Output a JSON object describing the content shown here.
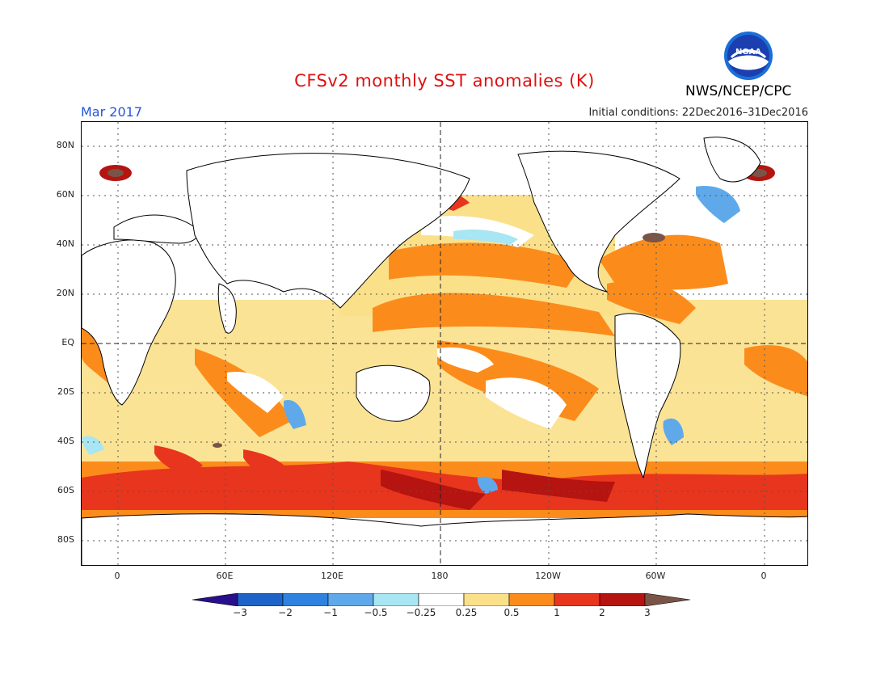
{
  "title": "CFSv2 monthly SST anomalies (K)",
  "agency": "NWS/NCEP/CPC",
  "logo_text": "NOAA",
  "valid_month": "Mar 2017",
  "initial_conditions": "Initial conditions: 22Dec2016–31Dec2016",
  "lat_labels": [
    "80N",
    "60N",
    "40N",
    "20N",
    "EQ",
    "20S",
    "40S",
    "60S",
    "80S"
  ],
  "lon_labels": [
    "0",
    "60E",
    "120E",
    "180",
    "120W",
    "60W",
    "0"
  ],
  "colorbar": {
    "labels": [
      "−3",
      "−2",
      "−1",
      "−0.5",
      "−0.25",
      "0.25",
      "0.5",
      "1",
      "2",
      "3"
    ],
    "colors": [
      "#2a0f8c",
      "#1e63c8",
      "#2f82e0",
      "#5fa9ea",
      "#a7e6f2",
      "#ffffff",
      "#fbe08a",
      "#fb8c1c",
      "#e8351e",
      "#b51410",
      "#7a5547"
    ]
  },
  "colors": {
    "warm_dark": "#b51410",
    "warm": "#e8351e",
    "orange": "#fb8c1c",
    "yellow": "#fbe08a",
    "cool_light": "#a7e6f2",
    "cool": "#5fa9ea",
    "cool_mid": "#2f82e0",
    "extreme_warm": "#7a5547"
  }
}
